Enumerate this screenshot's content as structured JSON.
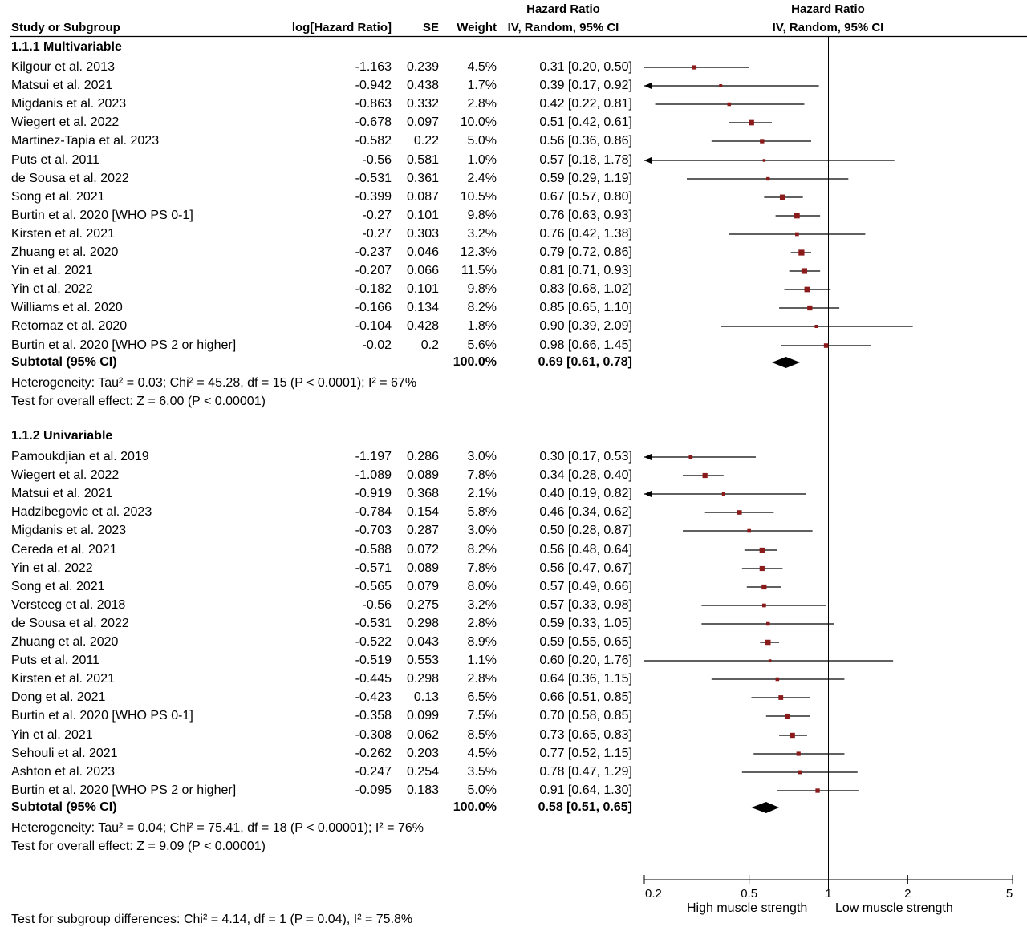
{
  "header": {
    "study": "Study or Subgroup",
    "loghr": "log[Hazard Ratio]",
    "se": "SE",
    "weight": "Weight",
    "hr_title": "Hazard Ratio",
    "hr_method": "IV, Random, 95% CI",
    "plot_title": "Hazard Ratio",
    "plot_method": "IV, Random, 95% CI"
  },
  "groups": [
    {
      "title": "1.1.1 Multivariable",
      "rows": [
        {
          "study": "Kilgour et al. 2013",
          "loghr": "-1.163",
          "se": "0.239",
          "weight": "4.5%",
          "ci": "0.31 [0.20, 0.50]"
        },
        {
          "study": "Matsui et al. 2021",
          "loghr": "-0.942",
          "se": "0.438",
          "weight": "1.7%",
          "ci": "0.39 [0.17, 0.92]"
        },
        {
          "study": "Migdanis et al. 2023",
          "loghr": "-0.863",
          "se": "0.332",
          "weight": "2.8%",
          "ci": "0.42 [0.22, 0.81]"
        },
        {
          "study": "Wiegert et al. 2022",
          "loghr": "-0.678",
          "se": "0.097",
          "weight": "10.0%",
          "ci": "0.51 [0.42, 0.61]"
        },
        {
          "study": "Martinez-Tapia et al. 2023",
          "loghr": "-0.582",
          "se": "0.22",
          "weight": "5.0%",
          "ci": "0.56 [0.36, 0.86]"
        },
        {
          "study": "Puts et al. 2011",
          "loghr": "-0.56",
          "se": "0.581",
          "weight": "1.0%",
          "ci": "0.57 [0.18, 1.78]"
        },
        {
          "study": "de Sousa et al. 2022",
          "loghr": "-0.531",
          "se": "0.361",
          "weight": "2.4%",
          "ci": "0.59 [0.29, 1.19]"
        },
        {
          "study": "Song et al. 2021",
          "loghr": "-0.399",
          "se": "0.087",
          "weight": "10.5%",
          "ci": "0.67 [0.57, 0.80]"
        },
        {
          "study": "Burtin et al. 2020 [WHO PS 0-1]",
          "loghr": "-0.27",
          "se": "0.101",
          "weight": "9.8%",
          "ci": "0.76 [0.63, 0.93]"
        },
        {
          "study": "Kirsten et al. 2021",
          "loghr": "-0.27",
          "se": "0.303",
          "weight": "3.2%",
          "ci": "0.76 [0.42, 1.38]"
        },
        {
          "study": "Zhuang et al. 2020",
          "loghr": "-0.237",
          "se": "0.046",
          "weight": "12.3%",
          "ci": "0.79 [0.72, 0.86]"
        },
        {
          "study": "Yin et al. 2021",
          "loghr": "-0.207",
          "se": "0.066",
          "weight": "11.5%",
          "ci": "0.81 [0.71, 0.93]"
        },
        {
          "study": "Yin et al. 2022",
          "loghr": "-0.182",
          "se": "0.101",
          "weight": "9.8%",
          "ci": "0.83 [0.68, 1.02]"
        },
        {
          "study": "Williams et al. 2020",
          "loghr": "-0.166",
          "se": "0.134",
          "weight": "8.2%",
          "ci": "0.85 [0.65, 1.10]"
        },
        {
          "study": "Retornaz et al. 2020",
          "loghr": "-0.104",
          "se": "0.428",
          "weight": "1.8%",
          "ci": "0.90 [0.39, 2.09]"
        },
        {
          "study": "Burtin et al. 2020 [WHO PS 2 or higher]",
          "loghr": "-0.02",
          "se": "0.2",
          "weight": "5.6%",
          "ci": "0.98 [0.66, 1.45]"
        }
      ],
      "subtotal": {
        "label": "Subtotal (95% CI)",
        "weight": "100.0%",
        "ci": "0.69 [0.61, 0.78]"
      },
      "heterogeneity": "Heterogeneity: Tau² = 0.03; Chi² = 45.28, df = 15 (P < 0.0001); I² = 67%",
      "overall": "Test for overall effect: Z = 6.00 (P < 0.00001)"
    },
    {
      "title": "1.1.2 Univariable",
      "rows": [
        {
          "study": "Pamoukdjian et al. 2019",
          "loghr": "-1.197",
          "se": "0.286",
          "weight": "3.0%",
          "ci": "0.30 [0.17, 0.53]"
        },
        {
          "study": "Wiegert et al. 2022",
          "loghr": "-1.089",
          "se": "0.089",
          "weight": "7.8%",
          "ci": "0.34 [0.28, 0.40]"
        },
        {
          "study": "Matsui et al. 2021",
          "loghr": "-0.919",
          "se": "0.368",
          "weight": "2.1%",
          "ci": "0.40 [0.19, 0.82]"
        },
        {
          "study": "Hadzibegovic et al. 2023",
          "loghr": "-0.784",
          "se": "0.154",
          "weight": "5.8%",
          "ci": "0.46 [0.34, 0.62]"
        },
        {
          "study": "Migdanis et al. 2023",
          "loghr": "-0.703",
          "se": "0.287",
          "weight": "3.0%",
          "ci": "0.50 [0.28, 0.87]"
        },
        {
          "study": "Cereda et al. 2021",
          "loghr": "-0.588",
          "se": "0.072",
          "weight": "8.2%",
          "ci": "0.56 [0.48, 0.64]"
        },
        {
          "study": "Yin et al. 2022",
          "loghr": "-0.571",
          "se": "0.089",
          "weight": "7.8%",
          "ci": "0.56 [0.47, 0.67]"
        },
        {
          "study": "Song et al. 2021",
          "loghr": "-0.565",
          "se": "0.079",
          "weight": "8.0%",
          "ci": "0.57 [0.49, 0.66]"
        },
        {
          "study": "Versteeg et al. 2018",
          "loghr": "-0.56",
          "se": "0.275",
          "weight": "3.2%",
          "ci": "0.57 [0.33, 0.98]"
        },
        {
          "study": "de Sousa et al. 2022",
          "loghr": "-0.531",
          "se": "0.298",
          "weight": "2.8%",
          "ci": "0.59 [0.33, 1.05]"
        },
        {
          "study": "Zhuang et al. 2020",
          "loghr": "-0.522",
          "se": "0.043",
          "weight": "8.9%",
          "ci": "0.59 [0.55, 0.65]"
        },
        {
          "study": "Puts et al. 2011",
          "loghr": "-0.519",
          "se": "0.553",
          "weight": "1.1%",
          "ci": "0.60 [0.20, 1.76]"
        },
        {
          "study": "Kirsten et al. 2021",
          "loghr": "-0.445",
          "se": "0.298",
          "weight": "2.8%",
          "ci": "0.64 [0.36, 1.15]"
        },
        {
          "study": "Dong et al. 2021",
          "loghr": "-0.423",
          "se": "0.13",
          "weight": "6.5%",
          "ci": "0.66 [0.51, 0.85]"
        },
        {
          "study": "Burtin et al. 2020 [WHO PS 0-1]",
          "loghr": "-0.358",
          "se": "0.099",
          "weight": "7.5%",
          "ci": "0.70 [0.58, 0.85]"
        },
        {
          "study": "Yin et al. 2021",
          "loghr": "-0.308",
          "se": "0.062",
          "weight": "8.5%",
          "ci": "0.73 [0.65, 0.83]"
        },
        {
          "study": "Sehouli et al. 2021",
          "loghr": "-0.262",
          "se": "0.203",
          "weight": "4.5%",
          "ci": "0.77 [0.52, 1.15]"
        },
        {
          "study": "Ashton et al. 2023",
          "loghr": "-0.247",
          "se": "0.254",
          "weight": "3.5%",
          "ci": "0.78 [0.47, 1.29]"
        },
        {
          "study": "Burtin et al. 2020 [WHO PS 2 or higher]",
          "loghr": "-0.095",
          "se": "0.183",
          "weight": "5.0%",
          "ci": "0.91 [0.64, 1.30]"
        }
      ],
      "subtotal": {
        "label": "Subtotal (95% CI)",
        "weight": "100.0%",
        "ci": "0.58 [0.51, 0.65]"
      },
      "heterogeneity": "Heterogeneity: Tau² = 0.04; Chi² = 75.41, df = 18 (P < 0.00001); I² = 76%",
      "overall": "Test for overall effect: Z = 9.09 (P < 0.00001)"
    }
  ],
  "subgroup_test": "Test for subgroup differences: Chi² = 4.14, df = 1 (P = 0.04), I² = 75.8%",
  "axis": {
    "ticks": [
      "0.2",
      "0.5",
      "1",
      "2",
      "5"
    ],
    "label_left": "High muscle strength",
    "label_right": "Low muscle strength"
  },
  "chart_data": {
    "type": "forest",
    "scale": "log",
    "xlim": [
      0.2,
      5
    ],
    "reference_line": 1,
    "ticks": [
      0.2,
      0.5,
      1,
      2,
      5
    ],
    "colors": {
      "point": "#8b1a1a",
      "line": "#000000",
      "diamond": "#000000"
    },
    "groups": [
      {
        "name": "1.1.1 Multivariable",
        "studies": [
          {
            "hr": 0.31,
            "lo": 0.2,
            "hi": 0.5,
            "w": 4.5
          },
          {
            "hr": 0.39,
            "lo": 0.17,
            "hi": 0.92,
            "w": 1.7
          },
          {
            "hr": 0.42,
            "lo": 0.22,
            "hi": 0.81,
            "w": 2.8
          },
          {
            "hr": 0.51,
            "lo": 0.42,
            "hi": 0.61,
            "w": 10.0
          },
          {
            "hr": 0.56,
            "lo": 0.36,
            "hi": 0.86,
            "w": 5.0
          },
          {
            "hr": 0.57,
            "lo": 0.18,
            "hi": 1.78,
            "w": 1.0
          },
          {
            "hr": 0.59,
            "lo": 0.29,
            "hi": 1.19,
            "w": 2.4
          },
          {
            "hr": 0.67,
            "lo": 0.57,
            "hi": 0.8,
            "w": 10.5
          },
          {
            "hr": 0.76,
            "lo": 0.63,
            "hi": 0.93,
            "w": 9.8
          },
          {
            "hr": 0.76,
            "lo": 0.42,
            "hi": 1.38,
            "w": 3.2
          },
          {
            "hr": 0.79,
            "lo": 0.72,
            "hi": 0.86,
            "w": 12.3
          },
          {
            "hr": 0.81,
            "lo": 0.71,
            "hi": 0.93,
            "w": 11.5
          },
          {
            "hr": 0.83,
            "lo": 0.68,
            "hi": 1.02,
            "w": 9.8
          },
          {
            "hr": 0.85,
            "lo": 0.65,
            "hi": 1.1,
            "w": 8.2
          },
          {
            "hr": 0.9,
            "lo": 0.39,
            "hi": 2.09,
            "w": 1.8
          },
          {
            "hr": 0.98,
            "lo": 0.66,
            "hi": 1.45,
            "w": 5.6
          }
        ],
        "subtotal": {
          "hr": 0.69,
          "lo": 0.61,
          "hi": 0.78
        }
      },
      {
        "name": "1.1.2 Univariable",
        "studies": [
          {
            "hr": 0.3,
            "lo": 0.17,
            "hi": 0.53,
            "w": 3.0
          },
          {
            "hr": 0.34,
            "lo": 0.28,
            "hi": 0.4,
            "w": 7.8
          },
          {
            "hr": 0.4,
            "lo": 0.19,
            "hi": 0.82,
            "w": 2.1
          },
          {
            "hr": 0.46,
            "lo": 0.34,
            "hi": 0.62,
            "w": 5.8
          },
          {
            "hr": 0.5,
            "lo": 0.28,
            "hi": 0.87,
            "w": 3.0
          },
          {
            "hr": 0.56,
            "lo": 0.48,
            "hi": 0.64,
            "w": 8.2
          },
          {
            "hr": 0.56,
            "lo": 0.47,
            "hi": 0.67,
            "w": 7.8
          },
          {
            "hr": 0.57,
            "lo": 0.49,
            "hi": 0.66,
            "w": 8.0
          },
          {
            "hr": 0.57,
            "lo": 0.33,
            "hi": 0.98,
            "w": 3.2
          },
          {
            "hr": 0.59,
            "lo": 0.33,
            "hi": 1.05,
            "w": 2.8
          },
          {
            "hr": 0.59,
            "lo": 0.55,
            "hi": 0.65,
            "w": 8.9
          },
          {
            "hr": 0.6,
            "lo": 0.2,
            "hi": 1.76,
            "w": 1.1
          },
          {
            "hr": 0.64,
            "lo": 0.36,
            "hi": 1.15,
            "w": 2.8
          },
          {
            "hr": 0.66,
            "lo": 0.51,
            "hi": 0.85,
            "w": 6.5
          },
          {
            "hr": 0.7,
            "lo": 0.58,
            "hi": 0.85,
            "w": 7.5
          },
          {
            "hr": 0.73,
            "lo": 0.65,
            "hi": 0.83,
            "w": 8.5
          },
          {
            "hr": 0.77,
            "lo": 0.52,
            "hi": 1.15,
            "w": 4.5
          },
          {
            "hr": 0.78,
            "lo": 0.47,
            "hi": 1.29,
            "w": 3.5
          },
          {
            "hr": 0.91,
            "lo": 0.64,
            "hi": 1.3,
            "w": 5.0
          }
        ],
        "subtotal": {
          "hr": 0.58,
          "lo": 0.51,
          "hi": 0.65
        }
      }
    ]
  }
}
